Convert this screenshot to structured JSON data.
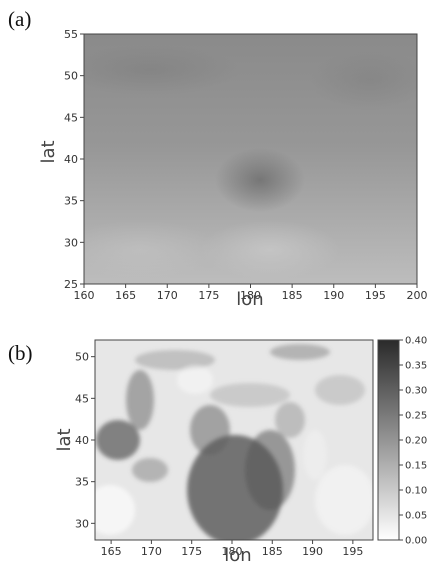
{
  "chart_data": [
    {
      "panel": "(a)",
      "type": "heatmap",
      "xlabel": "lon",
      "ylabel": "lat",
      "xlim": [
        160,
        200
      ],
      "ylim": [
        25,
        55
      ],
      "xticks": [
        "160",
        "165",
        "170",
        "175",
        "180",
        "185",
        "190",
        "195",
        "200"
      ],
      "yticks": [
        "25",
        "30",
        "35",
        "40",
        "45",
        "50",
        "55"
      ]
    },
    {
      "panel": "(b)",
      "type": "heatmap",
      "xlabel": "lon",
      "ylabel": "lat",
      "xlim": [
        163,
        197.5
      ],
      "ylim": [
        28,
        52
      ],
      "xticks": [
        "165",
        "170",
        "175",
        "180",
        "185",
        "190",
        "195"
      ],
      "yticks": [
        "30",
        "35",
        "40",
        "45",
        "50"
      ],
      "colorbar": {
        "range": [
          0,
          0.4
        ],
        "ticks": [
          "0.00",
          "0.05",
          "0.10",
          "0.15",
          "0.20",
          "0.25",
          "0.30",
          "0.35",
          "0.40"
        ],
        "color_low": "#ffffff",
        "color_high": "#2a2a2a"
      }
    }
  ]
}
